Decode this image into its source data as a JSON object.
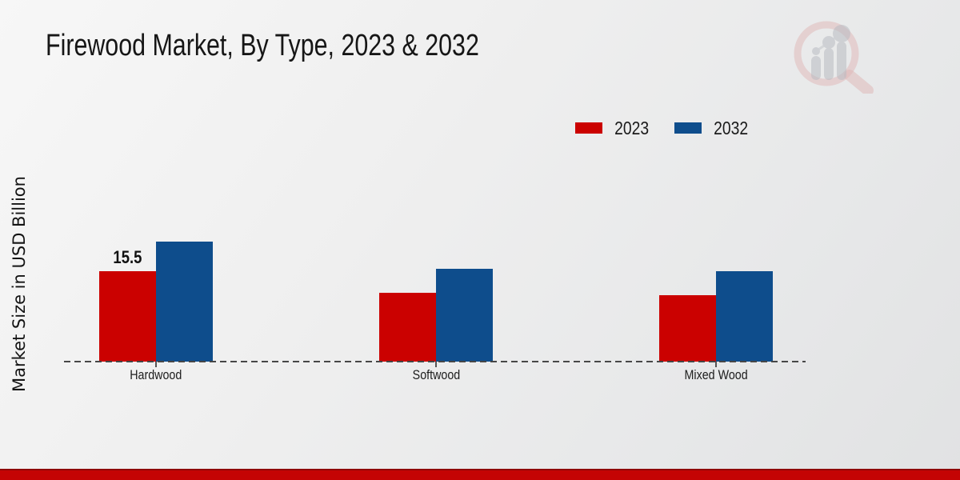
{
  "page": {
    "title": "Firewood Market, By Type, 2023 & 2032"
  },
  "colors": {
    "series_2023": "#cb0100",
    "series_2032": "#0e4d8c",
    "footer_band": "#c40404",
    "baseline": "#474747",
    "background_light": "#f7f7f7",
    "background_dark": "#e1e2e3"
  },
  "icons": {
    "watermark": "magnifier-bar-chart-logo"
  },
  "legend": {
    "items": [
      {
        "label": "2023",
        "color": "#cb0100"
      },
      {
        "label": "2032",
        "color": "#0e4d8c"
      }
    ]
  },
  "chart_data": {
    "type": "bar",
    "title": "Firewood Market, By Type, 2023 & 2032",
    "categories": [
      "Hardwood",
      "Softwood",
      "Mixed Wood"
    ],
    "series": [
      {
        "name": "2023",
        "color": "#cb0100",
        "values": [
          15.5,
          11.8,
          11.4
        ]
      },
      {
        "name": "2032",
        "color": "#0e4d8c",
        "values": [
          20.6,
          15.9,
          15.5
        ]
      }
    ],
    "xlabel": "",
    "ylabel": "Market Size in USD Billion",
    "ylim": [
      0,
      24
    ],
    "grid": false,
    "axis_style": "dashed-baseline-only",
    "legend_position": "top-right",
    "data_labels": [
      {
        "series": "2023",
        "category": "Hardwood",
        "text": "15.5"
      }
    ]
  }
}
